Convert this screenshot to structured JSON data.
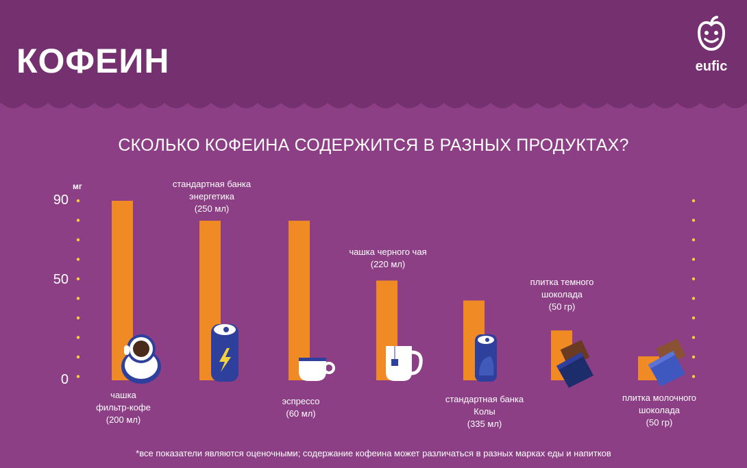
{
  "header": {
    "title": "КОФЕИН",
    "logo_text": "eufic"
  },
  "colors": {
    "header_bg": "#74306f",
    "page_bg": "#8d3f86",
    "bar": "#f08a24",
    "dots": "#f5d33a",
    "icon_blue": "#2e3f9c",
    "icon_white": "#ffffff"
  },
  "chart_data": {
    "type": "bar",
    "title": "СКОЛЬКО КОФЕИНА СОДЕРЖИТСЯ В РАЗНЫХ ПРОДУКТАХ?",
    "ylabel": "мг",
    "ylim": [
      0,
      90
    ],
    "yticks": [
      {
        "value": 0,
        "label": "0"
      },
      {
        "value": 50,
        "label": "50"
      },
      {
        "value": 90,
        "label": "90"
      }
    ],
    "categories": [
      {
        "lines": [
          "чашка",
          "фильтр-кофе",
          "(200 мл)"
        ],
        "label_pos": "below",
        "icon": "coffee-cup-icon"
      },
      {
        "lines": [
          "стандартная банка",
          "энергетика",
          "(250 мл)"
        ],
        "label_pos": "above",
        "icon": "energy-drink-can-icon"
      },
      {
        "lines": [
          "эспрессо",
          "(60 мл)"
        ],
        "label_pos": "below",
        "icon": "espresso-cup-icon"
      },
      {
        "lines": [
          "чашка черного чая",
          "(220 мл)"
        ],
        "label_pos": "above",
        "icon": "tea-mug-icon"
      },
      {
        "lines": [
          "стандартная банка",
          "Колы",
          "(335 мл)"
        ],
        "label_pos": "below",
        "icon": "cola-can-icon"
      },
      {
        "lines": [
          "плитка темного",
          "шоколада",
          "(50 гр)"
        ],
        "label_pos": "above",
        "icon": "dark-chocolate-icon"
      },
      {
        "lines": [
          "плитка молочного",
          "шоколада",
          "(50 гр)"
        ],
        "label_pos": "below",
        "icon": "milk-chocolate-icon"
      }
    ],
    "values": [
      90,
      80,
      80,
      50,
      40,
      25,
      12
    ]
  },
  "footnote": "*все показатели являются оценочными; содержание кофеина может различаться в разных марках еды и напитков"
}
